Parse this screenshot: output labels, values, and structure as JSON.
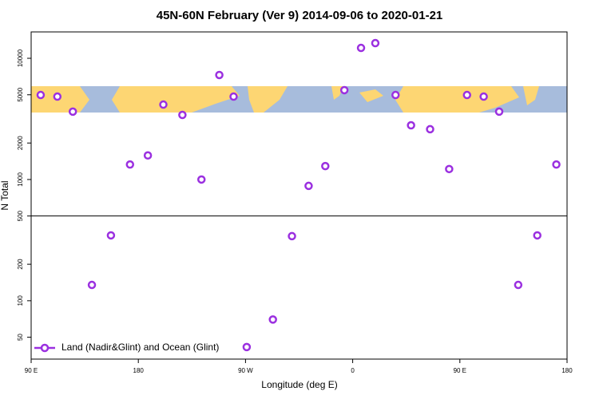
{
  "chart_data": {
    "type": "scatter",
    "title": "45N-60N February (Ver 9)   2014-09-06 to 2020-01-21",
    "x_label": "Longitude (deg E)",
    "y_label": "N Total",
    "xlim": [
      90,
      540
    ],
    "xticks": [
      {
        "value": 90,
        "label": "90 E"
      },
      {
        "value": 180,
        "label": "180"
      },
      {
        "value": 270,
        "label": "90 W"
      },
      {
        "value": 360,
        "label": "0"
      },
      {
        "value": 450,
        "label": "90 E"
      },
      {
        "value": 540,
        "label": "180"
      }
    ],
    "ylim": [
      33,
      16500
    ],
    "log_y": true,
    "yticks": [
      50,
      100,
      200,
      500,
      1000,
      2000,
      5000,
      10000
    ],
    "hline": 500,
    "legend": "bottom-left",
    "series": [
      {
        "name": "Land (Nadir&Glint) and Ocean (Glint)",
        "color": "#9b30e0",
        "x": [
          98,
          112,
          125,
          141,
          157,
          173,
          188,
          201,
          217,
          233,
          248,
          260,
          271,
          293,
          309,
          323,
          337,
          353,
          367,
          379,
          396,
          409,
          425,
          441,
          456,
          470,
          483,
          499,
          515,
          531
        ],
        "values": [
          4980,
          4830,
          3630,
          135,
          346,
          1330,
          1580,
          4150,
          3410,
          1000,
          7280,
          4830,
          41.5,
          70,
          341,
          886,
          1290,
          5460,
          12180,
          13340,
          4980,
          2800,
          2600,
          1220,
          4980,
          4830,
          3630,
          135,
          346,
          1330
        ]
      }
    ]
  }
}
